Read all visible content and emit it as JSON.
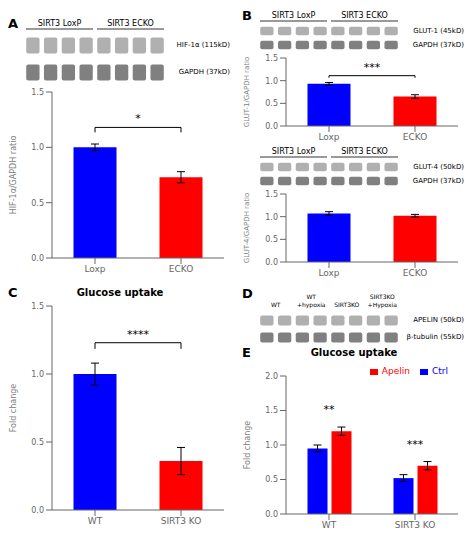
{
  "chart_data": [
    {
      "type": "bar",
      "categories": [
        "Loxp",
        "ECKO"
      ],
      "values": [
        1.0,
        0.73
      ],
      "errors": [
        0.03,
        0.05
      ],
      "colors": [
        "#0000FF",
        "#FF0000"
      ],
      "ylabel": "HIF-1α/GAPDH ratio",
      "ylim": [
        0.0,
        1.5
      ],
      "yticks": [
        {
          "value": 0.0,
          "label": "0.0"
        },
        {
          "value": 0.5,
          "label": "0.5"
        },
        {
          "value": 1.0,
          "label": "1.0"
        },
        {
          "value": 1.5,
          "label": "1.5"
        }
      ],
      "annotations": {
        "panel": "A",
        "groups": [
          "SIRT3 LoxP",
          "SIRT3 ECKO"
        ],
        "blot": [
          "HIF-1α (115kD)",
          "GAPDH (37kD)"
        ],
        "sig": "*"
      }
    },
    {
      "type": "bar",
      "categories": [
        "Loxp",
        "ECKO"
      ],
      "values": [
        0.93,
        0.65
      ],
      "errors": [
        0.03,
        0.04
      ],
      "colors": [
        "#0000FF",
        "#FF0000"
      ],
      "ylabel": "GLUT-1/GAPDH ratio",
      "ylim": [
        0.0,
        1.5
      ],
      "yticks": [
        {
          "value": 0.0,
          "label": "0.0"
        },
        {
          "value": 0.5,
          "label": "0.5"
        },
        {
          "value": 1.0,
          "label": "1.0"
        },
        {
          "value": 1.5,
          "label": "1.5"
        }
      ],
      "annotations": {
        "panel": "B",
        "groups": [
          "SIRT3 LoxP",
          "SIRT3 ECKO"
        ],
        "blot": [
          "GLUT-1 (45kD)",
          "GAPDH (37kD)"
        ],
        "sig": "***"
      }
    },
    {
      "type": "bar",
      "categories": [
        "Loxp",
        "ECKO"
      ],
      "values": [
        1.07,
        1.02
      ],
      "errors": [
        0.04,
        0.03
      ],
      "colors": [
        "#0000FF",
        "#FF0000"
      ],
      "ylabel": "GLUT-4/GAPDH ratio",
      "ylim": [
        0.0,
        1.5
      ],
      "yticks": [
        {
          "value": 0.0,
          "label": "0.0"
        },
        {
          "value": 0.5,
          "label": "0.5"
        },
        {
          "value": 1.0,
          "label": "1.0"
        },
        {
          "value": 1.5,
          "label": "1.5"
        }
      ],
      "annotations": {
        "groups": [
          "SIRT3 LoxP",
          "SIRT3 ECKO"
        ],
        "blot": [
          "GLUT-4 (50kD)",
          "GAPDH (37kD)"
        ]
      }
    },
    {
      "type": "bar",
      "title": "Glucose uptake",
      "categories": [
        "WT",
        "SIRT3 KO"
      ],
      "values": [
        1.0,
        0.36
      ],
      "errors": [
        0.08,
        0.1
      ],
      "colors": [
        "#0000FF",
        "#FF0000"
      ],
      "ylabel": "Fold change",
      "ylim": [
        0.0,
        1.5
      ],
      "yticks": [
        {
          "value": 0.0,
          "label": "0.0"
        },
        {
          "value": 0.5,
          "label": "0.5"
        },
        {
          "value": 1.0,
          "label": "1.0"
        },
        {
          "value": 1.5,
          "label": "1.5"
        }
      ],
      "annotations": {
        "panel": "C",
        "sig": "****"
      }
    },
    {
      "type": "bar",
      "title": "Glucose uptake",
      "categories": [
        "WT",
        "SIRT3 KO"
      ],
      "series": [
        {
          "name": "Ctrl",
          "color": "#0000FF",
          "values": [
            0.95,
            0.52
          ],
          "errors": [
            0.05,
            0.05
          ]
        },
        {
          "name": "Apelin",
          "color": "#FF0000",
          "values": [
            1.2,
            0.7
          ],
          "errors": [
            0.06,
            0.06
          ]
        }
      ],
      "ylabel": "Fold change",
      "ylim": [
        0.0,
        2.0
      ],
      "yticks": [
        {
          "value": 0.0,
          "label": "0.0"
        },
        {
          "value": 0.5,
          "label": "0.5"
        },
        {
          "value": 1.0,
          "label": "1.0"
        },
        {
          "value": 1.5,
          "label": "1.5"
        },
        {
          "value": 2.0,
          "label": "2.0"
        }
      ],
      "legend": "upper right",
      "annotations": {
        "panel": "E",
        "sig": [
          "**",
          "***"
        ],
        "blot_panel": "D",
        "blot": [
          "APELIN (50kD)",
          "β-tubulin (55kD)"
        ],
        "lanes": [
          "WT",
          "WT\n+hypoxia",
          "SIRT3KO",
          "SIRT3KO\n+Hypoxia"
        ]
      }
    }
  ]
}
